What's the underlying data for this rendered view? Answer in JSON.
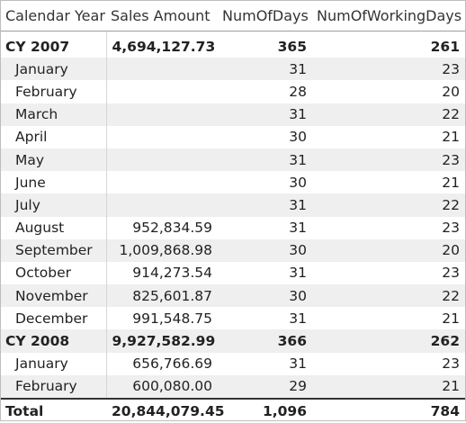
{
  "table": {
    "columns": [
      "Calendar Year",
      "Sales Amount",
      "NumOfDays",
      "NumOfWorkingDays"
    ],
    "rows": [
      {
        "level": 0,
        "cells": [
          "CY 2007",
          "4,694,127.73",
          "365",
          "261"
        ]
      },
      {
        "level": 1,
        "cells": [
          "January",
          null,
          "31",
          "23"
        ]
      },
      {
        "level": 1,
        "cells": [
          "February",
          null,
          "28",
          "20"
        ]
      },
      {
        "level": 1,
        "cells": [
          "March",
          null,
          "31",
          "22"
        ]
      },
      {
        "level": 1,
        "cells": [
          "April",
          null,
          "30",
          "21"
        ]
      },
      {
        "level": 1,
        "cells": [
          "May",
          null,
          "31",
          "23"
        ]
      },
      {
        "level": 1,
        "cells": [
          "June",
          null,
          "30",
          "21"
        ]
      },
      {
        "level": 1,
        "cells": [
          "July",
          null,
          "31",
          "22"
        ]
      },
      {
        "level": 1,
        "cells": [
          "August",
          "952,834.59",
          "31",
          "23"
        ]
      },
      {
        "level": 1,
        "cells": [
          "September",
          "1,009,868.98",
          "30",
          "20"
        ]
      },
      {
        "level": 1,
        "cells": [
          "October",
          "914,273.54",
          "31",
          "23"
        ]
      },
      {
        "level": 1,
        "cells": [
          "November",
          "825,601.87",
          "30",
          "22"
        ]
      },
      {
        "level": 1,
        "cells": [
          "December",
          "991,548.75",
          "31",
          "21"
        ]
      },
      {
        "level": 0,
        "cells": [
          "CY 2008",
          "9,927,582.99",
          "366",
          "262"
        ]
      },
      {
        "level": 1,
        "cells": [
          "January",
          "656,766.69",
          "31",
          "23"
        ]
      },
      {
        "level": 1,
        "cells": [
          "February",
          "600,080.00",
          "29",
          "21"
        ]
      }
    ],
    "total": [
      "Total",
      "20,844,079.45",
      "1,096",
      "784"
    ]
  }
}
